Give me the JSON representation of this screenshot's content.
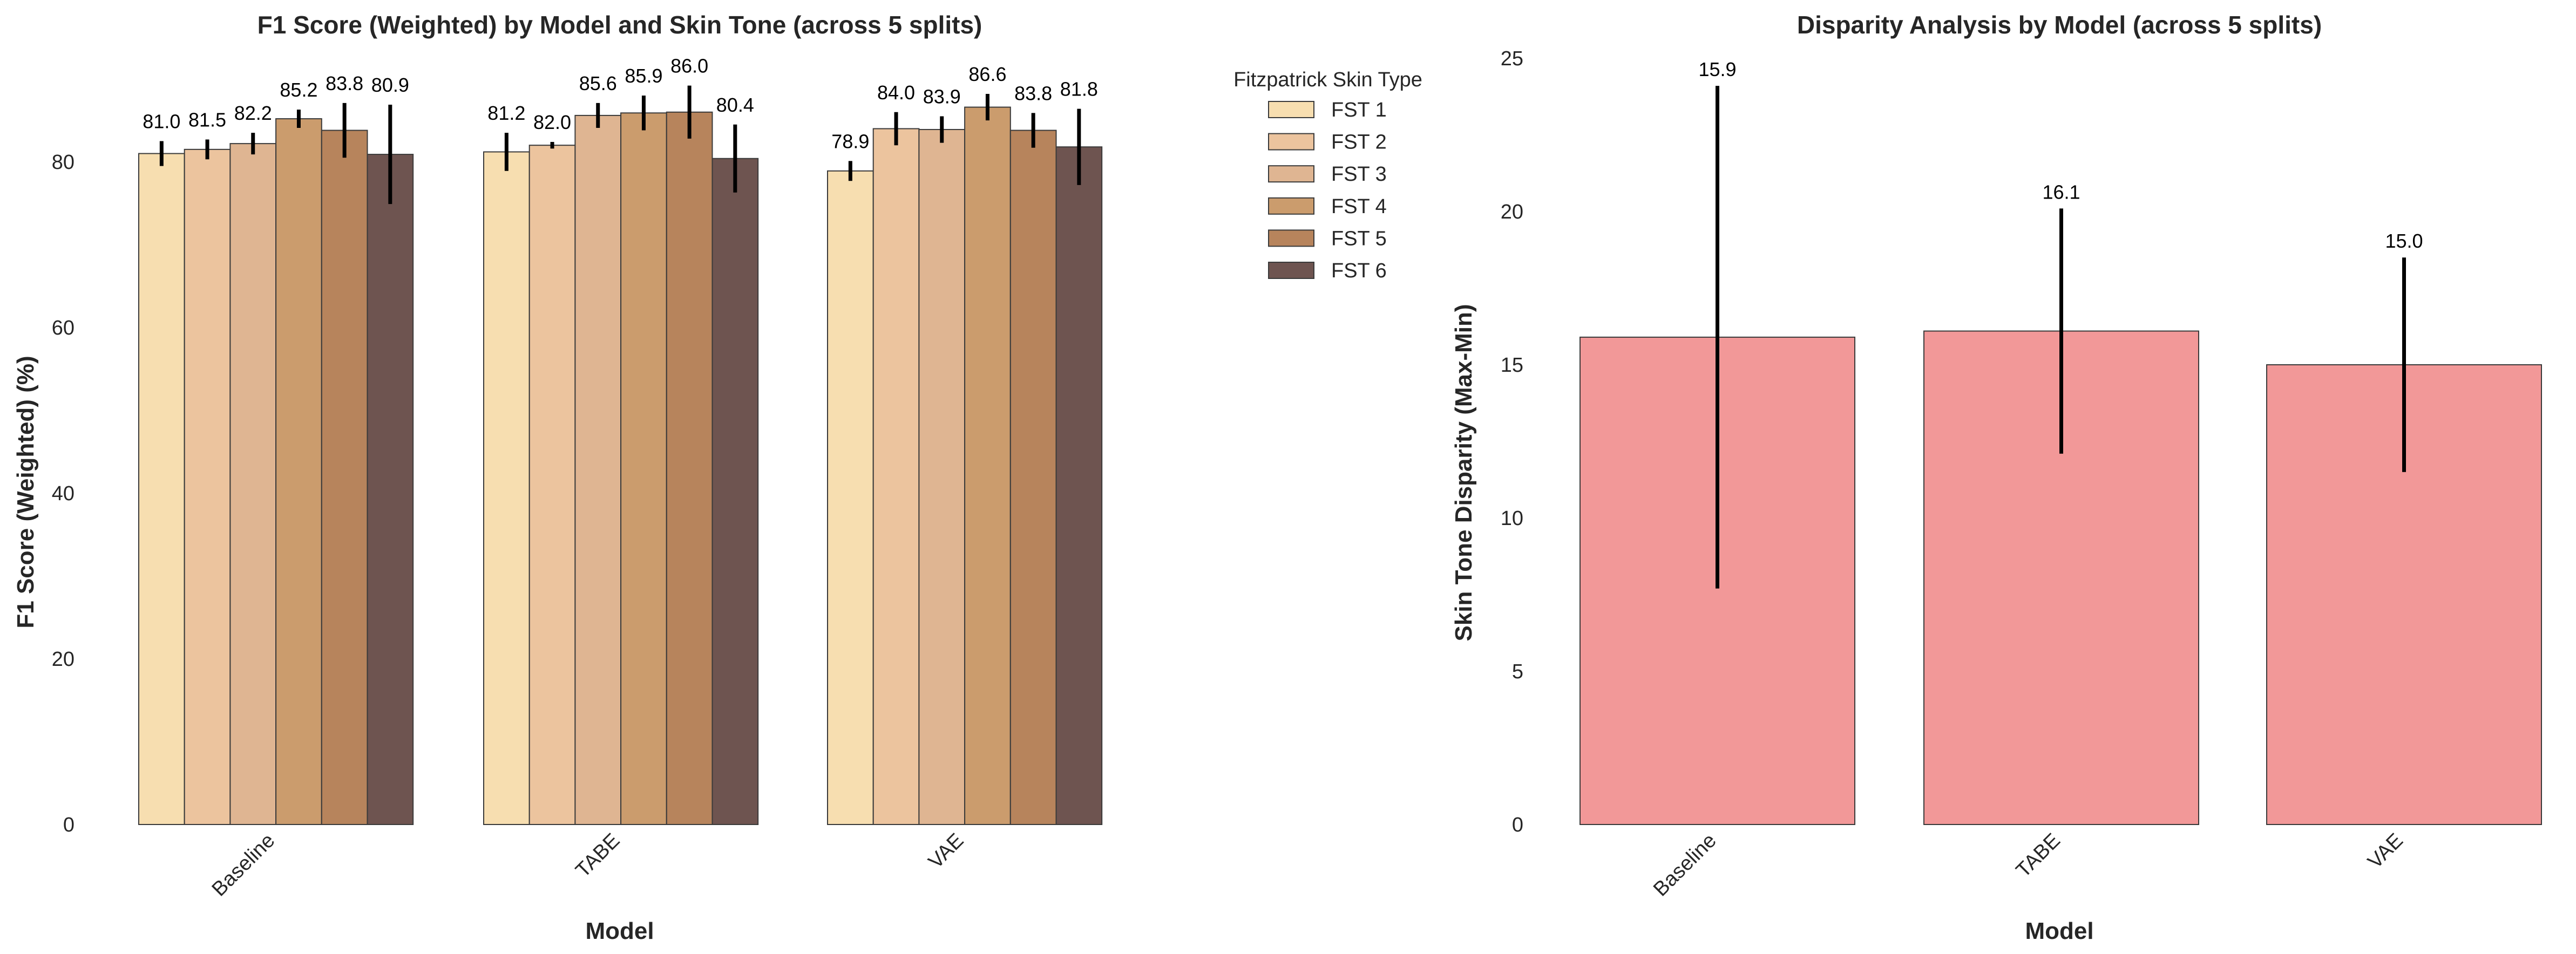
{
  "chart_data": [
    {
      "type": "bar",
      "title": "F1 Score (Weighted) by Model and Skin Tone (across 5 splits)",
      "xlabel": "Model",
      "ylabel": "F1 Score (Weighted) (%)",
      "categories": [
        "Baseline",
        "TABE",
        "VAE"
      ],
      "ylim": [
        0,
        92.5
      ],
      "yticks": [
        0,
        20,
        40,
        60,
        80
      ],
      "grid": false,
      "legend": {
        "title": "Fitzpatrick Skin Type",
        "placement": "outside-right"
      },
      "series": [
        {
          "name": "FST 1",
          "color": "#F7DEB0",
          "values": [
            81.0,
            81.2,
            78.9
          ],
          "errors": [
            1.5,
            2.3,
            1.2
          ],
          "labels": [
            "81.0",
            "81.2",
            "78.9"
          ]
        },
        {
          "name": "FST 2",
          "color": "#ECC49E",
          "values": [
            81.5,
            82.0,
            84.0
          ],
          "errors": [
            1.2,
            0.4,
            2.0
          ],
          "labels": [
            "81.5",
            "82.0",
            "84.0"
          ]
        },
        {
          "name": "FST 3",
          "color": "#DFB592",
          "values": [
            82.2,
            85.6,
            83.9
          ],
          "errors": [
            1.3,
            1.5,
            1.6
          ],
          "labels": [
            "82.2",
            "85.6",
            "83.9"
          ]
        },
        {
          "name": "FST 4",
          "color": "#CB9C6D",
          "values": [
            85.2,
            85.9,
            86.6
          ],
          "errors": [
            1.1,
            2.1,
            1.6
          ],
          "labels": [
            "85.2",
            "85.9",
            "86.6"
          ]
        },
        {
          "name": "FST 5",
          "color": "#B7845C",
          "values": [
            83.8,
            86.0,
            83.8
          ],
          "errors": [
            3.3,
            3.2,
            2.1
          ],
          "labels": [
            "83.8",
            "86.0",
            "83.8"
          ]
        },
        {
          "name": "FST 6",
          "color": "#6E5450",
          "values": [
            80.9,
            80.4,
            81.8
          ],
          "errors": [
            6.0,
            4.1,
            4.6
          ],
          "labels": [
            "80.9",
            "80.4",
            "81.8"
          ]
        }
      ]
    },
    {
      "type": "bar",
      "title": "Disparity Analysis by Model (across 5 splits)",
      "xlabel": "Model",
      "ylabel": "Skin Tone Disparity (Max-Min)",
      "categories": [
        "Baseline",
        "TABE",
        "VAE"
      ],
      "values": [
        15.9,
        16.1,
        15.0
      ],
      "errors": [
        8.2,
        4.0,
        3.5
      ],
      "labels": [
        "15.9",
        "16.1",
        "15.0"
      ],
      "color": "#F29898",
      "ylim": [
        0,
        25
      ],
      "yticks": [
        0,
        5,
        10,
        15,
        20,
        25
      ],
      "grid": false
    }
  ]
}
